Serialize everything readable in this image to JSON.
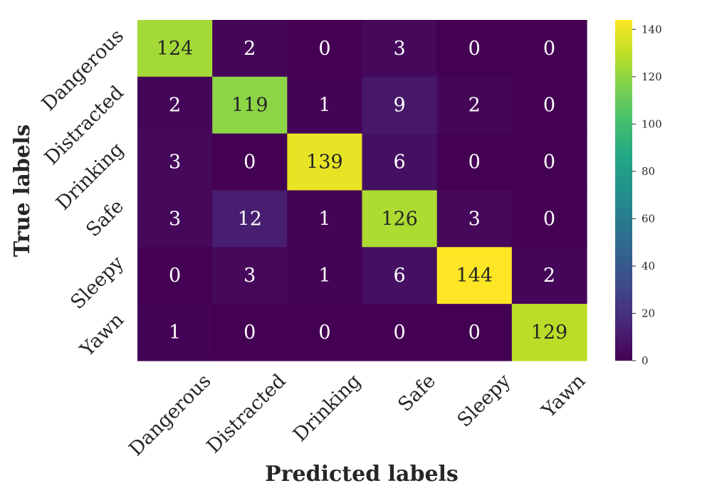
{
  "chart_data": {
    "type": "heatmap",
    "title": "",
    "xlabel": "Predicted labels",
    "ylabel": "True labels",
    "x_categories": [
      "Dangerous",
      "Distracted",
      "Drinking",
      "Safe",
      "Sleepy",
      "Yawn"
    ],
    "y_categories": [
      "Dangerous",
      "Distracted",
      "Drinking",
      "Safe",
      "Sleepy",
      "Yawn"
    ],
    "matrix": [
      [
        124,
        2,
        0,
        3,
        0,
        0
      ],
      [
        2,
        119,
        1,
        9,
        2,
        0
      ],
      [
        3,
        0,
        139,
        6,
        0,
        0
      ],
      [
        3,
        12,
        1,
        126,
        3,
        0
      ],
      [
        0,
        3,
        1,
        6,
        144,
        2
      ],
      [
        1,
        0,
        0,
        0,
        0,
        129
      ]
    ],
    "colormap": "viridis",
    "vmin": 0,
    "vmax": 144,
    "colorbar_ticks": [
      0,
      20,
      40,
      60,
      80,
      100,
      120,
      140
    ],
    "annotation_dark_text_color": "#262626",
    "annotation_light_text_color": "#ffffff"
  }
}
